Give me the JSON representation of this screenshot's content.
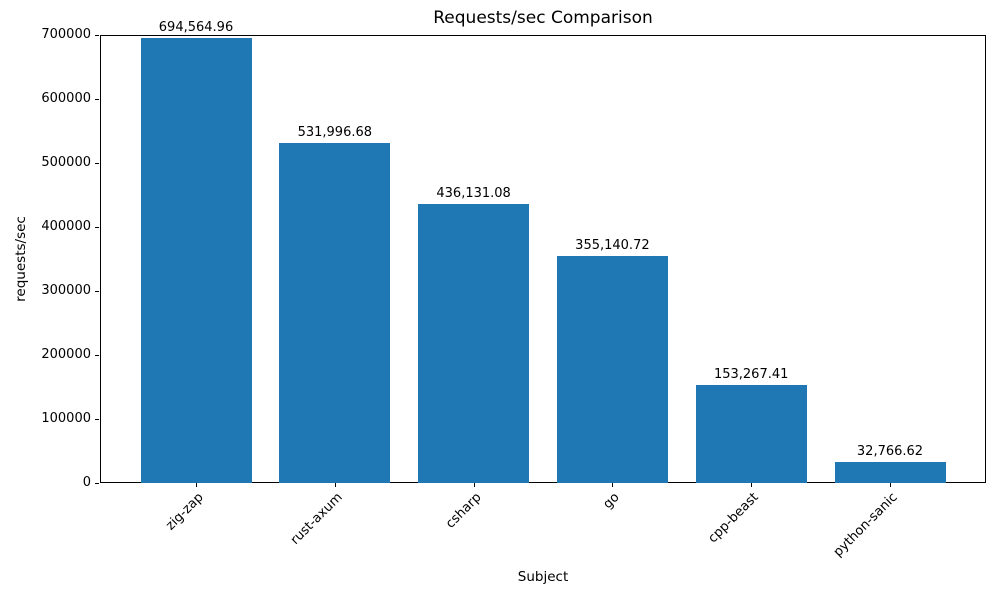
{
  "chart_data": {
    "type": "bar",
    "title": "Requests/sec Comparison",
    "xlabel": "Subject",
    "ylabel": "requests/sec",
    "categories": [
      "zig-zap",
      "rust-axum",
      "csharp",
      "go",
      "cpp-beast",
      "python-sanic"
    ],
    "values": [
      694564.96,
      531996.68,
      436131.08,
      355140.72,
      153267.41,
      32766.62
    ],
    "bar_labels": [
      "694,564.96",
      "531,996.68",
      "436,131.08",
      "355,140.72",
      "153,267.41",
      "32,766.62"
    ],
    "ylim": [
      0,
      700000
    ],
    "yticks": [
      0,
      100000,
      200000,
      300000,
      400000,
      500000,
      600000,
      700000
    ],
    "ytick_labels": [
      "0",
      "100000",
      "200000",
      "300000",
      "400000",
      "500000",
      "600000",
      "700000"
    ],
    "xtick_rotation_deg": 45,
    "bar_color": "#1f77b4",
    "text_color": "#000000",
    "background_color": "#ffffff",
    "grid": false,
    "legend": null
  }
}
